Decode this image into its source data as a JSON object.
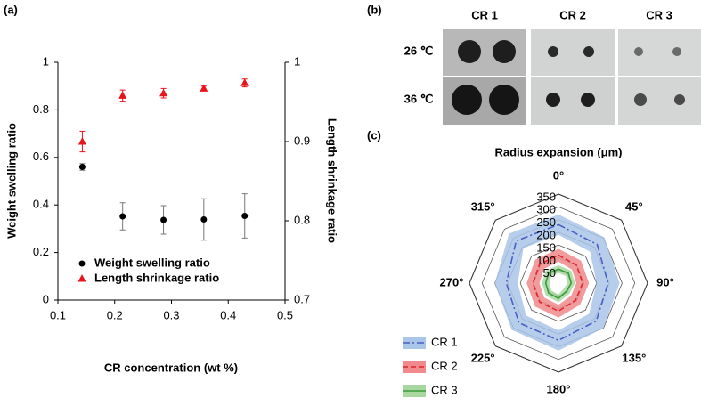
{
  "chart_data": [
    {
      "type": "scatter",
      "panel_label": "(a)",
      "xlabel": "CR concentration (wt %)",
      "ylabel": "Weight swelling ratio",
      "y2label": "Length shrinkage ratio",
      "x": [
        0.143,
        0.214,
        0.286,
        0.357,
        0.429
      ],
      "xlim": [
        0.1,
        0.5
      ],
      "xticks": [
        0.1,
        0.2,
        0.3,
        0.4,
        0.5
      ],
      "ylim": [
        0,
        1
      ],
      "yticks": [
        0,
        0.2,
        0.4,
        0.6,
        0.8,
        1
      ],
      "y2lim": [
        0.7,
        1
      ],
      "y2ticks": [
        0.7,
        0.8,
        0.9,
        1
      ],
      "legend": "lower left",
      "series": [
        {
          "name": "Weight swelling ratio",
          "color": "#000000",
          "marker": "circle",
          "values": [
            0.56,
            0.352,
            0.337,
            0.339,
            0.354
          ],
          "errors": [
            0.014,
            0.057,
            0.06,
            0.087,
            0.093
          ]
        },
        {
          "name": "Length shrinkage ratio",
          "color": "#e8141b",
          "marker": "triangle",
          "axis": "y2",
          "values": [
            0.9,
            0.958,
            0.961,
            0.967,
            0.974
          ],
          "errors": [
            0.013,
            0.007,
            0.006,
            0.003,
            0.005
          ]
        }
      ]
    },
    {
      "type": "radar",
      "panel_label": "(c)",
      "title": "Radius expansion (μm)",
      "categories": [
        "0°",
        "45°",
        "90°",
        "135°",
        "180°",
        "225°",
        "270°",
        "315°"
      ],
      "rlim": [
        0,
        350
      ],
      "rticks": [
        50,
        100,
        150,
        200,
        250,
        300,
        350
      ],
      "legend": "lower left",
      "series": [
        {
          "name": "CR 1",
          "color": "#4a5fc1",
          "fill": "#a9c6e8",
          "dash": "8 3 2 3",
          "values": [
            230,
            215,
            195,
            210,
            225,
            220,
            205,
            235
          ],
          "errors": [
            40,
            40,
            45,
            40,
            40,
            40,
            45,
            40
          ]
        },
        {
          "name": "CR 2",
          "color": "#e0262b",
          "fill": "#f08a8c",
          "dash": "6 3",
          "values": [
            110,
            100,
            95,
            95,
            110,
            105,
            100,
            105
          ],
          "errors": [
            25,
            25,
            25,
            25,
            25,
            25,
            25,
            25
          ]
        },
        {
          "name": "CR 3",
          "color": "#3a9a3a",
          "fill": "#a8d8a0",
          "dash": "none",
          "values": [
            55,
            55,
            50,
            45,
            60,
            55,
            50,
            55
          ],
          "errors": [
            15,
            15,
            15,
            15,
            15,
            15,
            15,
            15
          ]
        }
      ]
    }
  ],
  "image_panel": {
    "panel_label": "(b)",
    "columns": [
      "CR 1",
      "CR 2",
      "CR 3"
    ],
    "rows": [
      "26 ℃",
      "36 ℃"
    ]
  }
}
